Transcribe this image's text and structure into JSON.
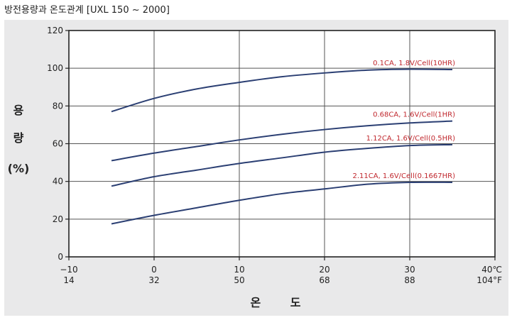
{
  "title": "방전용량과 온도관계 [UXL 150 ~ 2000]",
  "chart_data": {
    "type": "line",
    "title": "방전용량과 온도관계 [UXL 150 ~ 2000]",
    "xlabel": "온 도",
    "ylabel": [
      "용",
      "량",
      "(%)"
    ],
    "x_ticks_c": [
      "−10",
      "0",
      "10",
      "20",
      "30",
      "40℃"
    ],
    "x_ticks_f": [
      "14",
      "32",
      "50",
      "68",
      "88",
      "104°F"
    ],
    "y_ticks": [
      "0",
      "20",
      "40",
      "60",
      "80",
      "100",
      "120"
    ],
    "xlim": [
      -10,
      40
    ],
    "ylim": [
      0,
      120
    ],
    "grid": true,
    "colors": {
      "line": "#2b3f73",
      "label": "#c0272d",
      "plot_bg": "#ffffff",
      "panel_bg": "#e9e9ea"
    },
    "series": [
      {
        "name": "0.1CA, 1.8V/Cell(10HR)",
        "x": [
          -5,
          0,
          5,
          10,
          15,
          20,
          25,
          30,
          35
        ],
        "y": [
          77,
          84,
          89,
          92.5,
          95.5,
          97.5,
          99,
          99.5,
          99.3
        ]
      },
      {
        "name": "0.68CA, 1.6V/Cell(1HR)",
        "x": [
          -5,
          0,
          5,
          10,
          15,
          20,
          25,
          30,
          35
        ],
        "y": [
          51,
          55,
          58.5,
          62,
          65,
          67.5,
          69.5,
          71,
          72
        ]
      },
      {
        "name": "1.12CA, 1.6V/Cell(0.5HR)",
        "x": [
          -5,
          0,
          5,
          10,
          15,
          20,
          25,
          30,
          35
        ],
        "y": [
          37.5,
          42.5,
          46,
          49.5,
          52.5,
          55.5,
          57.5,
          59,
          59.5
        ]
      },
      {
        "name": "2.11CA, 1.6V/Cell(0.1667HR)",
        "x": [
          -5,
          0,
          5,
          10,
          15,
          20,
          25,
          30,
          35
        ],
        "y": [
          17.5,
          22,
          26,
          30,
          33.5,
          36,
          38.5,
          39.5,
          39.5
        ]
      }
    ]
  }
}
